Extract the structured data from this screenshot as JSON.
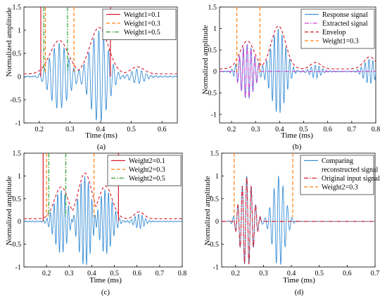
{
  "figure": {
    "panels": [
      {
        "id": "a",
        "label": "(a)",
        "xlabel": "Time (ms)",
        "ylabel": "Normalized amplitude",
        "xticks": [
          "0.2",
          "0.3",
          "0.4",
          "0.5",
          "0.6"
        ],
        "yticks": [
          "-1",
          "-0.5",
          "0",
          "0.5",
          "1",
          "1.5"
        ],
        "legend": [
          "Weight1=0.1",
          "Weight1=0.3",
          "Weight1=0.5"
        ]
      },
      {
        "id": "b",
        "label": "(b)",
        "xlabel": "Time (ms)",
        "ylabel": "Normalized amplitude",
        "xticks": [
          "0.2",
          "0.3",
          "0.4",
          "0.5",
          "0.6",
          "0.7",
          "0.8"
        ],
        "yticks": [
          "-1",
          "-0.5",
          "0",
          "0.5",
          "1",
          "1.5"
        ],
        "legend": [
          "Response signal",
          "Extracted signal",
          "Envelop",
          "Weight1=0.3"
        ]
      },
      {
        "id": "c",
        "label": "(c)",
        "xlabel": "Time (ms)",
        "ylabel": "Normalized amplitude",
        "xticks": [
          "0.2",
          "0.3",
          "0.4",
          "0.5",
          "0.6",
          "0.7",
          "0.8"
        ],
        "yticks": [
          "-1",
          "-0.5",
          "0",
          "0.5",
          "1",
          "1.5"
        ],
        "legend": [
          "Weight2=0.1",
          "Weight2=0.3",
          "Weight2=0.5"
        ]
      },
      {
        "id": "d",
        "label": "(d)",
        "xlabel": "Time (ms)",
        "ylabel": "Normalized amplitude",
        "xticks": [
          "0.2",
          "0.3",
          "0.4",
          "0.5",
          "0.6",
          "0.7"
        ],
        "yticks": [
          "-1",
          "-0.5",
          "0",
          "0.5",
          "1",
          "1.5"
        ],
        "legend": [
          "Comparing",
          "reconstructed signal",
          "Original input signal",
          "Weight2=0.3"
        ]
      }
    ]
  },
  "chart_data": [
    {
      "panel": "a",
      "type": "line",
      "xlabel": "Time (ms)",
      "ylabel": "Normalized amplitude",
      "xlim": [
        0.15,
        0.65
      ],
      "ylim": [
        -1,
        1.5
      ],
      "signal": {
        "kind": "wave-packets",
        "freq_per_ms": 62.5,
        "noise": 0.09,
        "packets": [
          {
            "center": 0.265,
            "amp": 0.72,
            "width": 0.042
          },
          {
            "center": 0.395,
            "amp": 1.0,
            "width": 0.042
          },
          {
            "center": 0.52,
            "amp": 0.15,
            "width": 0.03
          }
        ]
      },
      "series": [
        {
          "name": "Weight1=0.1",
          "color": "#d7192f",
          "style": "solid",
          "values": [
            0.205,
            0.432
          ]
        },
        {
          "name": "Weight1=0.3",
          "color": "#ff7f0e",
          "style": "dashed",
          "values": [
            0.22,
            0.313
          ]
        },
        {
          "name": "Weight1=0.5",
          "color": "#2ca02c",
          "style": "dashdot",
          "values": [
            0.215,
            0.292
          ]
        }
      ],
      "envelope": {
        "color": "#d7192f",
        "style": "dashed"
      },
      "signal_color": "#3a8fd6"
    },
    {
      "panel": "b",
      "type": "line",
      "xlabel": "Time (ms)",
      "ylabel": "Normalized amplitude",
      "xlim": [
        0.15,
        0.8
      ],
      "ylim": [
        -1.2,
        1.5
      ],
      "signal": {
        "kind": "wave-packets",
        "freq_per_ms": 62.5,
        "noise": 0.08,
        "packets": [
          {
            "center": 0.265,
            "amp": 0.65,
            "width": 0.042
          },
          {
            "center": 0.395,
            "amp": 1.0,
            "width": 0.042
          },
          {
            "center": 0.55,
            "amp": 0.15,
            "width": 0.03
          },
          {
            "center": 0.775,
            "amp": 0.28,
            "width": 0.035
          }
        ]
      },
      "series": [
        {
          "name": "Response signal",
          "color": "#3a8fd6",
          "style": "solid"
        },
        {
          "name": "Extracted signal",
          "color": "#d040d0",
          "style": "dashdot",
          "window": [
            0.222,
            0.318
          ]
        },
        {
          "name": "Envelop",
          "color": "#d7192f",
          "style": "dashed"
        },
        {
          "name": "Weight1=0.3",
          "color": "#ff7f0e",
          "style": "dashed",
          "values": [
            0.222,
            0.318
          ]
        }
      ]
    },
    {
      "panel": "c",
      "type": "line",
      "xlabel": "Time (ms)",
      "ylabel": "Normalized amplitude",
      "xlim": [
        0.1,
        0.8
      ],
      "ylim": [
        -1,
        1.5
      ],
      "signal": {
        "kind": "wave-packets",
        "freq_per_ms": 62.5,
        "noise": 0.07,
        "packets": [
          {
            "center": 0.265,
            "amp": 0.7,
            "width": 0.042
          },
          {
            "center": 0.37,
            "amp": 1.0,
            "width": 0.042
          },
          {
            "center": 0.46,
            "amp": 0.72,
            "width": 0.042
          },
          {
            "center": 0.61,
            "amp": 0.15,
            "width": 0.03
          }
        ]
      },
      "series": [
        {
          "name": "Weight2=0.1",
          "color": "#d7192f",
          "style": "solid",
          "values": [
            0.185,
            0.518
          ]
        },
        {
          "name": "Weight2=0.3",
          "color": "#ff7f0e",
          "style": "dashed",
          "values": [
            0.2,
            0.41
          ]
        },
        {
          "name": "Weight2=0.5",
          "color": "#2ca02c",
          "style": "dashdot",
          "values": [
            0.21,
            0.285
          ]
        }
      ],
      "envelope": {
        "color": "#d7192f",
        "style": "dashed"
      },
      "signal_color": "#3a8fd6"
    },
    {
      "panel": "d",
      "type": "line",
      "xlabel": "Time (ms)",
      "ylabel": "Normalized amplitude",
      "xlim": [
        0.15,
        0.7
      ],
      "ylim": [
        -1,
        1.5
      ],
      "signal": {
        "kind": "wave-packets",
        "freq_per_ms": 62.5,
        "noise": 0.0,
        "packets": [
          {
            "center": 0.24,
            "amp": 1.0,
            "width": 0.032
          },
          {
            "center": 0.355,
            "amp": 1.0,
            "width": 0.03
          }
        ]
      },
      "series": [
        {
          "name": "Comparing reconstructed signal",
          "color": "#3a8fd6",
          "style": "solid"
        },
        {
          "name": "Original input signal",
          "color": "#d7192f",
          "style": "dashdot",
          "window": [
            0.195,
            0.29
          ]
        },
        {
          "name": "Weight2=0.3",
          "color": "#ff7f0e",
          "style": "dashed",
          "values": [
            0.195,
            0.405
          ]
        }
      ]
    }
  ]
}
